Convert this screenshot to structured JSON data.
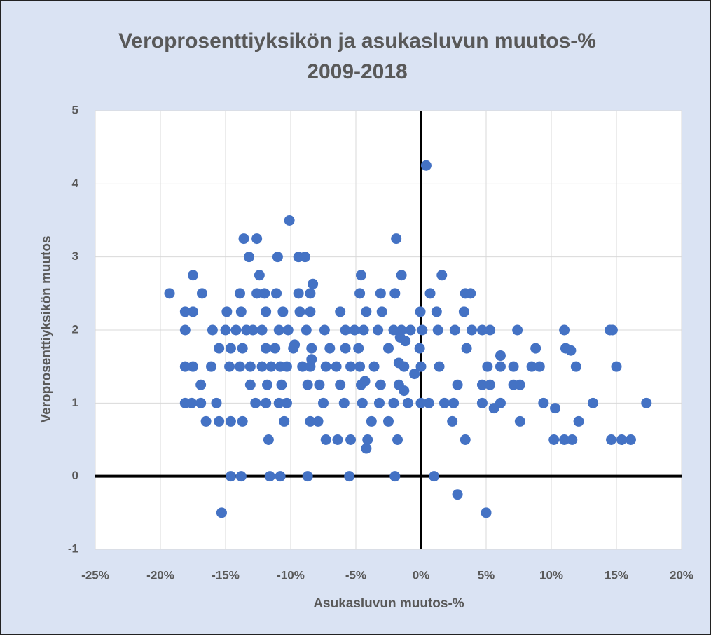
{
  "chart_data": {
    "type": "scatter",
    "title": [
      "Veroprosenttiyksikön  ja asukasluvun muutos-%",
      "2009-2018"
    ],
    "x_label": "Asukasluvun muutos-%",
    "y_label": "Veroprosenttiyksikön muutos",
    "color": "#4472c4",
    "grid": true,
    "xlim": [
      -25,
      20
    ],
    "ylim": [
      -1,
      5
    ],
    "xticks": [
      {
        "value": -25,
        "label": "-25%"
      },
      {
        "value": -20,
        "label": "-20%"
      },
      {
        "value": -15,
        "label": "-15%"
      },
      {
        "value": -10,
        "label": "-10%"
      },
      {
        "value": -5,
        "label": "-5%"
      },
      {
        "value": 0,
        "label": "0%"
      },
      {
        "value": 5,
        "label": "5%"
      },
      {
        "value": 10,
        "label": "10%"
      },
      {
        "value": 15,
        "label": "15%"
      },
      {
        "value": 20,
        "label": "20%"
      }
    ],
    "yticks": [
      -1,
      0,
      1,
      2,
      3,
      4,
      5
    ],
    "x": [
      -19.3,
      -16.8,
      -13.9,
      -12.6,
      -12.0,
      -11.1,
      -9.4,
      -8.5,
      -4.7,
      -3.1,
      -2.0,
      0.7,
      3.4,
      3.8,
      -17.5,
      -12.4,
      -4.6,
      -1.5,
      1.6,
      -13.2,
      -11.0,
      -9.4,
      -8.9,
      -13.6,
      -12.6,
      -1.9,
      -10.1,
      0.4,
      -8.3,
      -18.1,
      -17.5,
      -14.9,
      -13.8,
      -11.9,
      -10.6,
      -9.3,
      -8.5,
      -6.2,
      -4.2,
      -3.0,
      -0.05,
      1.2,
      3.3,
      -18.1,
      -16.0,
      -15.0,
      -14.2,
      -13.4,
      -12.9,
      -12.2,
      -10.9,
      -10.2,
      -8.8,
      -7.4,
      -5.8,
      -5.1,
      -4.4,
      -3.3,
      -2.1,
      -1.5,
      -0.8,
      0.1,
      1.3,
      2.6,
      3.9,
      4.7,
      5.3,
      7.4,
      11.0,
      14.5,
      14.7,
      -15.5,
      -14.6,
      -13.7,
      -11.9,
      -11.2,
      -9.8,
      -8.4,
      -7.0,
      -5.8,
      -4.8,
      -2.5,
      -0.1,
      3.5,
      8.8,
      11.1,
      11.5,
      -18.1,
      -17.5,
      -16.1,
      -14.7,
      -13.9,
      -13.1,
      -12.2,
      -11.5,
      -10.8,
      -10.3,
      -9.1,
      -8.5,
      -7.3,
      -6.5,
      -5.4,
      -4.7,
      -3.6,
      -1.3,
      0,
      1.4,
      5.1,
      6.1,
      7.1,
      8.5,
      9.1,
      11.9,
      15.0,
      -16.9,
      -13.1,
      -11.8,
      -10.7,
      -8.7,
      -7.8,
      -6.2,
      -4.6,
      -3.1,
      -1.7,
      2.8,
      4.7,
      5.3,
      7.1,
      7.6,
      -18.1,
      -17.6,
      -16.9,
      -15.7,
      -12.7,
      -11.9,
      -10.9,
      -10.3,
      -7.5,
      -5.9,
      -4.5,
      -3.2,
      -2.1,
      -1.0,
      0,
      0.6,
      1.8,
      2.5,
      4.7,
      6.1,
      9.4,
      13.2,
      17.3,
      10.3,
      5.6,
      -16.5,
      -15.5,
      -14.6,
      -13.7,
      -10.5,
      -8.5,
      -7.9,
      -3.8,
      -2.5,
      2.4,
      7.6,
      12.1,
      -11.7,
      -7.3,
      -6.4,
      -5.4,
      -4.1,
      -1.8,
      3.4,
      10.2,
      11.0,
      11.6,
      14.6,
      15.4,
      16.1,
      -4.2,
      -14.6,
      -13.8,
      -11.6,
      -10.8,
      -8.7,
      -5.5,
      -2.0,
      1.0,
      2.8,
      -15.3,
      5.0,
      -0.5,
      -1.2,
      -1.6,
      -1.7,
      -1.3,
      -4.3,
      6.1,
      -9.7,
      -8.4
    ],
    "values": [
      2.5,
      2.5,
      2.5,
      2.5,
      2.5,
      2.5,
      2.5,
      2.5,
      2.5,
      2.5,
      2.5,
      2.5,
      2.5,
      2.5,
      2.75,
      2.75,
      2.75,
      2.75,
      2.75,
      3,
      3,
      3,
      3,
      3.25,
      3.25,
      3.25,
      3.5,
      4.25,
      2.63,
      2.25,
      2.25,
      2.25,
      2.25,
      2.25,
      2.25,
      2.25,
      2.25,
      2.25,
      2.25,
      2.25,
      2.25,
      2.25,
      2.25,
      2,
      2,
      2,
      2,
      2,
      2,
      2,
      2,
      2,
      2,
      2,
      2,
      2,
      2,
      2,
      2,
      2,
      2,
      2,
      2,
      2,
      2,
      2,
      2,
      2,
      2,
      2,
      2,
      1.75,
      1.75,
      1.75,
      1.75,
      1.75,
      1.75,
      1.75,
      1.75,
      1.75,
      1.75,
      1.75,
      1.75,
      1.75,
      1.75,
      1.75,
      1.72,
      1.5,
      1.5,
      1.5,
      1.5,
      1.5,
      1.5,
      1.5,
      1.5,
      1.5,
      1.5,
      1.5,
      1.5,
      1.5,
      1.5,
      1.5,
      1.5,
      1.5,
      1.5,
      1.5,
      1.5,
      1.5,
      1.5,
      1.5,
      1.5,
      1.5,
      1.5,
      1.5,
      1.25,
      1.25,
      1.25,
      1.25,
      1.25,
      1.25,
      1.25,
      1.25,
      1.25,
      1.25,
      1.25,
      1.25,
      1.25,
      1.25,
      1.25,
      1,
      1,
      1,
      1,
      1,
      1,
      1,
      1,
      1,
      1,
      1,
      1,
      1,
      1,
      1,
      1,
      1,
      1,
      1,
      1,
      1,
      1,
      1,
      0.93,
      0.93,
      0.75,
      0.75,
      0.75,
      0.75,
      0.75,
      0.75,
      0.75,
      0.75,
      0.75,
      0.75,
      0.75,
      0.75,
      0.5,
      0.5,
      0.5,
      0.5,
      0.5,
      0.5,
      0.5,
      0.5,
      0.5,
      0.5,
      0.5,
      0.5,
      0.5,
      0.38,
      0,
      0,
      0,
      0,
      0,
      0,
      0,
      0,
      -0.25,
      -0.5,
      -0.5,
      1.4,
      1.85,
      1.9,
      1.55,
      1.17,
      1.3,
      1.65,
      1.8,
      1.6
    ]
  }
}
